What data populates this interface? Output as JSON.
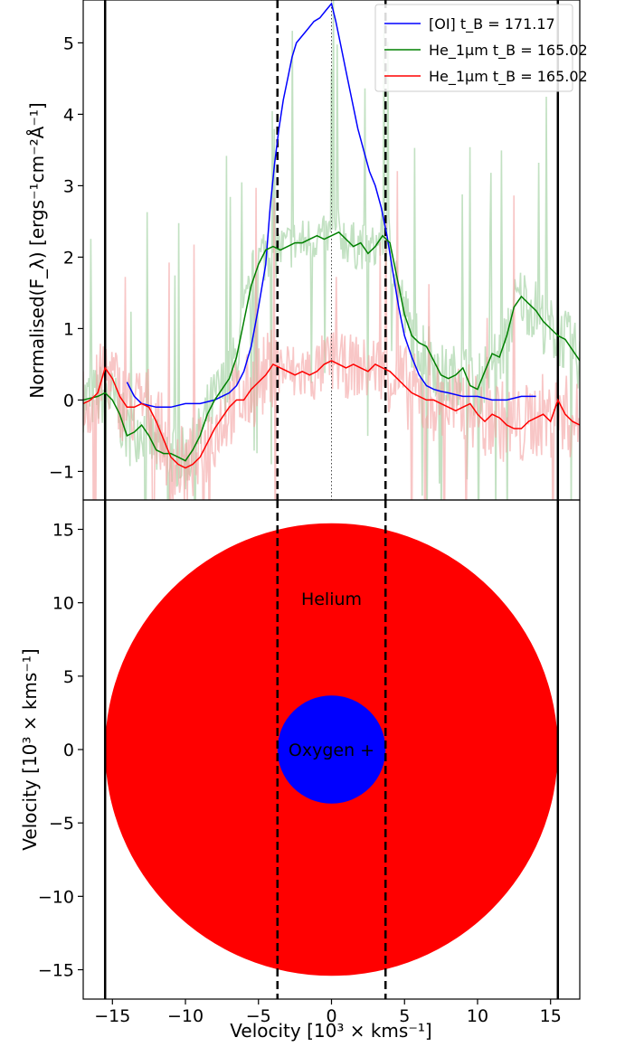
{
  "chart_data": [
    {
      "type": "line",
      "ylabel": "Normalised(F_λ) [ergs⁻¹cm⁻²Å⁻¹]",
      "xlim": [
        -17,
        17
      ],
      "ylim": [
        -1.4,
        5.6
      ],
      "y_ticks": [
        -1,
        0,
        1,
        2,
        3,
        4,
        5
      ],
      "y_tick_labels": [
        "−1",
        "0",
        "1",
        "2",
        "3",
        "4",
        "5"
      ],
      "legend_position": "top-right",
      "vertical_lines": {
        "solid": [
          -15.5,
          15.5
        ],
        "dashed": [
          -3.7,
          3.7
        ],
        "dotted": [
          0
        ]
      },
      "series": [
        {
          "name": "[OI] t_B = 171.17",
          "color": "#0000ff",
          "x": [
            -14,
            -13.5,
            -13,
            -12,
            -11,
            -10,
            -9,
            -8,
            -7.5,
            -7,
            -6.5,
            -6,
            -5.5,
            -5,
            -4.5,
            -4.2,
            -3.9,
            -3.6,
            -3.3,
            -3,
            -2.7,
            -2.4,
            -2,
            -1.6,
            -1.2,
            -0.8,
            -0.4,
            0,
            0.3,
            0.6,
            1,
            1.4,
            1.8,
            2.2,
            2.6,
            3,
            3.4,
            3.8,
            4.2,
            4.6,
            5,
            5.5,
            6,
            6.5,
            7,
            7.5,
            8,
            9,
            10,
            11,
            12,
            13,
            14
          ],
          "y": [
            0.25,
            0.05,
            -0.05,
            -0.1,
            -0.1,
            -0.05,
            -0.05,
            0,
            0.05,
            0.1,
            0.2,
            0.4,
            0.75,
            1.3,
            1.9,
            2.7,
            3.3,
            3.8,
            4.2,
            4.5,
            4.8,
            5.0,
            5.1,
            5.2,
            5.3,
            5.35,
            5.45,
            5.55,
            5.3,
            5.0,
            4.6,
            4.2,
            3.8,
            3.5,
            3.2,
            3.0,
            2.7,
            2.3,
            1.8,
            1.3,
            0.9,
            0.6,
            0.35,
            0.2,
            0.15,
            0.12,
            0.1,
            0.05,
            0.05,
            0,
            0,
            0.05,
            0.05
          ]
        },
        {
          "name": "He_1μm t_B = 165.02",
          "color": "#008000",
          "x": [
            -17,
            -16,
            -15.5,
            -15,
            -14.5,
            -14,
            -13.5,
            -13,
            -12.5,
            -12,
            -11.5,
            -11,
            -10.5,
            -10,
            -9.5,
            -9,
            -8.5,
            -8,
            -7.5,
            -7,
            -6.5,
            -6,
            -5.5,
            -5,
            -4.5,
            -4,
            -3.5,
            -3,
            -2.5,
            -2,
            -1.5,
            -1,
            -0.5,
            0,
            0.5,
            1,
            1.5,
            2,
            2.5,
            3,
            3.5,
            4,
            4.5,
            5,
            5.5,
            6,
            6.5,
            7,
            7.5,
            8,
            8.5,
            9,
            9.5,
            10,
            10.5,
            11,
            11.5,
            12,
            12.5,
            13,
            13.5,
            14,
            14.5,
            15,
            15.5,
            16,
            16.5,
            17
          ],
          "y": [
            0,
            0.05,
            0.1,
            0,
            -0.2,
            -0.5,
            -0.45,
            -0.35,
            -0.5,
            -0.7,
            -0.75,
            -0.75,
            -0.8,
            -0.85,
            -0.7,
            -0.5,
            -0.2,
            0,
            0.15,
            0.3,
            0.6,
            1.1,
            1.6,
            1.9,
            2.1,
            2.15,
            2.1,
            2.15,
            2.2,
            2.2,
            2.25,
            2.3,
            2.25,
            2.3,
            2.35,
            2.25,
            2.15,
            2.2,
            2.05,
            2.15,
            2.3,
            2.2,
            1.7,
            1.2,
            0.9,
            0.8,
            0.75,
            0.55,
            0.35,
            0.3,
            0.35,
            0.45,
            0.2,
            0.15,
            0.4,
            0.65,
            0.6,
            0.9,
            1.3,
            1.45,
            1.35,
            1.25,
            1.1,
            1.0,
            0.9,
            0.85,
            0.7,
            0.55
          ]
        },
        {
          "name": "He_1μm t_B = 165.02",
          "color": "#ff0000",
          "x": [
            -17,
            -16.5,
            -16,
            -15.5,
            -15,
            -14.5,
            -14,
            -13.5,
            -13,
            -12.5,
            -12,
            -11.5,
            -11,
            -10.5,
            -10,
            -9.5,
            -9,
            -8.5,
            -8,
            -7.5,
            -7,
            -6.5,
            -6,
            -5.5,
            -5,
            -4.5,
            -4,
            -3.5,
            -3,
            -2.5,
            -2,
            -1.5,
            -1,
            -0.5,
            0,
            0.5,
            1,
            1.5,
            2,
            2.5,
            3,
            3.5,
            4,
            4.5,
            5,
            5.5,
            6,
            6.5,
            7,
            7.5,
            8,
            8.5,
            9,
            9.5,
            10,
            10.5,
            11,
            11.5,
            12,
            12.5,
            13,
            13.5,
            14,
            14.5,
            15,
            15.5,
            16,
            16.5,
            17
          ],
          "y": [
            -0.05,
            0,
            0.1,
            0.45,
            0.3,
            0.05,
            -0.1,
            -0.1,
            -0.05,
            -0.1,
            -0.3,
            -0.55,
            -0.8,
            -0.9,
            -0.95,
            -0.9,
            -0.8,
            -0.6,
            -0.4,
            -0.25,
            -0.1,
            0,
            0,
            0.15,
            0.25,
            0.35,
            0.5,
            0.45,
            0.4,
            0.35,
            0.4,
            0.35,
            0.4,
            0.5,
            0.55,
            0.5,
            0.45,
            0.5,
            0.45,
            0.4,
            0.5,
            0.45,
            0.4,
            0.3,
            0.2,
            0.1,
            0.05,
            0,
            0,
            -0.05,
            -0.1,
            -0.15,
            -0.1,
            -0.05,
            -0.2,
            -0.3,
            -0.2,
            -0.25,
            -0.35,
            -0.4,
            -0.4,
            -0.3,
            -0.25,
            -0.2,
            -0.3,
            0,
            -0.2,
            -0.3,
            -0.35
          ]
        }
      ]
    },
    {
      "type": "scatter",
      "xlabel": "Velocity [10³ × kms⁻¹]",
      "ylabel": "Velocity [10³ × kms⁻¹]",
      "xlim": [
        -17,
        17
      ],
      "ylim": [
        -17,
        17
      ],
      "x_ticks": [
        -15,
        -10,
        -5,
        0,
        5,
        10,
        15
      ],
      "x_tick_labels": [
        "−15",
        "−10",
        "−5",
        "0",
        "5",
        "10",
        "15"
      ],
      "y_ticks": [
        -15,
        -10,
        -5,
        0,
        5,
        10,
        15
      ],
      "y_tick_labels": [
        "−15",
        "−10",
        "−5",
        "0",
        "5",
        "10",
        "15"
      ],
      "vertical_lines": {
        "solid": [
          -15.5,
          15.5
        ],
        "dashed": [
          -3.7,
          3.7
        ]
      },
      "circles": [
        {
          "label": "Helium",
          "radius": 15.5,
          "color": "#ff0000",
          "label_at": [
            0,
            10.3
          ]
        },
        {
          "label": "Oxygen +",
          "radius": 3.7,
          "color": "#0000ff",
          "label_at": [
            0,
            0
          ]
        }
      ]
    }
  ]
}
